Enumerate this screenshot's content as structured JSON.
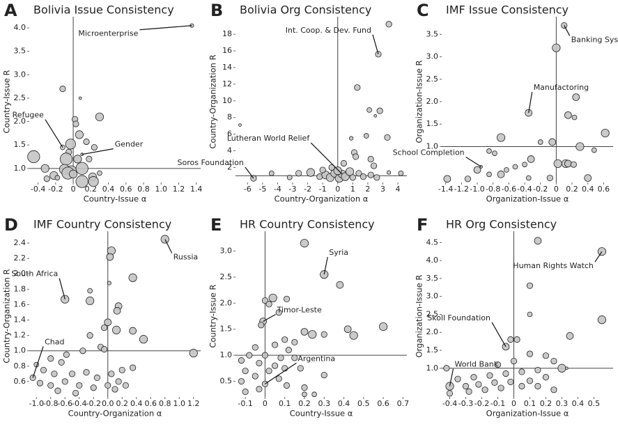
{
  "chart_data": [
    {
      "type": "scatter",
      "panel": "A",
      "title": "Bolivia Issue Consistency",
      "xlabel": "Country-Issue α",
      "ylabel": "Country-Issue R",
      "color": "#c4c4c4",
      "xlim": [
        -0.5,
        1.45
      ],
      "ylim": [
        0.7,
        4.15
      ],
      "xticks": [
        -0.4,
        -0.2,
        0,
        0.2,
        0.4,
        0.6,
        0.8,
        {
          "value": 1,
          "label": "1.0"
        },
        1.2,
        1.4
      ],
      "yticks": [
        {
          "value": 1,
          "label": "1.0"
        },
        1.5,
        {
          "value": 2,
          "label": "2.0"
        },
        2.5,
        {
          "value": 3,
          "label": "3.0"
        },
        3.5,
        {
          "value": 4,
          "label": "4.0"
        }
      ],
      "vline": 0,
      "hline": 1,
      "x": [
        1.35,
        -0.12,
        0.08,
        0.02,
        0.3,
        0.03,
        0.07,
        0.15,
        -0.03,
        0.24,
        -0.12,
        -0.05,
        0.1,
        0.05,
        0.18,
        -0.08,
        -0.45,
        -0.32,
        -0.1,
        -0.02,
        0.1,
        -0.06,
        0.0,
        -0.22,
        0.22,
        0.3,
        0.23,
        0.1,
        -0.18,
        -0.3
      ],
      "y": [
        4.05,
        2.7,
        2.5,
        2.05,
        2.1,
        1.95,
        1.72,
        1.57,
        1.52,
        1.45,
        1.45,
        1.35,
        1.3,
        1.2,
        1.2,
        1.2,
        1.25,
        1.0,
        0.98,
        0.95,
        1.0,
        0.9,
        0.88,
        0.85,
        0.82,
        0.9,
        0.72,
        0.72,
        0.8,
        0.78
      ],
      "sizes": [
        1,
        2,
        0.5,
        2,
        3,
        2,
        3,
        2,
        4,
        2,
        1.5,
        2,
        0.5,
        3,
        2,
        5,
        5,
        3,
        4,
        4,
        5,
        5,
        3,
        3,
        3,
        1.5,
        4,
        5,
        1.5,
        2
      ],
      "annotations": [
        {
          "text": "Microenterprise",
          "x": 1.35,
          "y": 4.05
        },
        {
          "text": "Refugee",
          "x": -0.12,
          "y": 1.45
        },
        {
          "text": "Gender",
          "x": 0.1,
          "y": 1.3
        }
      ]
    },
    {
      "type": "scatter",
      "panel": "B",
      "title": "Bolivia Org Consistency",
      "xlabel": "Country-Organization α",
      "ylabel": "Country-Organization R",
      "color": "#c4c4c4",
      "xlim": [
        -6.8,
        4.6
      ],
      "ylim": [
        0.2,
        19.6
      ],
      "xticks": [
        -6,
        -5,
        -4,
        -3,
        -2,
        -1,
        0,
        1,
        2,
        3,
        4
      ],
      "yticks": [
        2,
        4,
        6,
        8,
        10,
        12,
        14,
        16,
        18
      ],
      "vline": 0,
      "hline": 1,
      "x": [
        3.4,
        2.7,
        1.3,
        2.8,
        2.1,
        2.5,
        -6.5,
        3.3,
        1.9,
        0.9,
        1.1,
        1.2,
        2.2,
        2.4,
        -5.6,
        -4.4,
        -3.2,
        -2.6,
        -1.8,
        -1.2,
        -0.8,
        -0.5,
        -0.2,
        0.1,
        0.3,
        0.5,
        0.8,
        1.0,
        1.4,
        1.7,
        2.2,
        2.6,
        3.4,
        4.2,
        -0.4,
        0.4,
        0.0,
        -1.0
      ],
      "y": [
        19.2,
        15.6,
        11.6,
        8.8,
        8.9,
        8.2,
        7.1,
        5.6,
        5.8,
        5.5,
        3.8,
        3.3,
        3.0,
        2.2,
        0.7,
        1.3,
        0.8,
        1.3,
        1.4,
        0.9,
        1.1,
        0.8,
        1.3,
        0.7,
        1.2,
        0.9,
        1.5,
        0.8,
        1.3,
        0.9,
        1.1,
        0.8,
        1.4,
        1.3,
        2.0,
        2.5,
        1.6,
        1.7
      ],
      "sizes": [
        2,
        2,
        2,
        2,
        1.5,
        0.5,
        0.5,
        2,
        1.5,
        1,
        2,
        2,
        2,
        2,
        2,
        1.5,
        1.5,
        2,
        3,
        2,
        3,
        3,
        3,
        3,
        3,
        3,
        3,
        2,
        2,
        2,
        2,
        2,
        1,
        1.5,
        2,
        2,
        3,
        2
      ],
      "annotations": [
        {
          "text": "Int. Coop. & Dev. Fund",
          "x": 2.7,
          "y": 15.6
        },
        {
          "text": "Lutheran World Relief",
          "x": 0.3,
          "y": 1.2
        },
        {
          "text": "Soros Foundation",
          "x": -5.6,
          "y": 0.7
        }
      ]
    },
    {
      "type": "scatter",
      "panel": "C",
      "title": "IMF Issue Consistency",
      "xlabel": "Organization-Issue α",
      "ylabel": "Organization-Issue R",
      "color": "#c4c4c4",
      "xlim": [
        -1.45,
        0.72
      ],
      "ylim": [
        0.2,
        3.8
      ],
      "xticks": [
        -1.4,
        -1.2,
        {
          "value": -1,
          "label": "-1.0"
        },
        -0.8,
        -0.6,
        -0.4,
        -0.2,
        0,
        0.2,
        0.4,
        0.6
      ],
      "yticks": [
        {
          "value": 1,
          "label": "1.0"
        },
        1.5,
        {
          "value": 2,
          "label": "2.0"
        },
        2.5,
        {
          "value": 3,
          "label": "3.0"
        },
        3.5
      ],
      "vline": 0,
      "hline": 1,
      "x": [
        0.1,
        0.0,
        0.25,
        -0.35,
        0.15,
        0.23,
        0.62,
        -0.7,
        -0.2,
        -0.05,
        0.3,
        0.48,
        -0.85,
        -0.78,
        -0.32,
        -0.4,
        -0.52,
        -1.0,
        -0.63,
        -0.7,
        -0.85,
        -1.12,
        -1.38,
        -0.35,
        0.12,
        0.15,
        0.02,
        0.4,
        -0.08,
        0.22,
        -0.95
      ],
      "y": [
        3.7,
        3.2,
        2.1,
        1.75,
        1.7,
        1.65,
        1.3,
        1.2,
        1.1,
        1.1,
        1.0,
        0.92,
        0.9,
        0.85,
        0.72,
        0.6,
        0.55,
        0.48,
        0.48,
        0.38,
        0.38,
        0.28,
        0.28,
        0.3,
        0.62,
        0.62,
        0.62,
        0.3,
        0.3,
        0.6,
        0.55
      ],
      "sizes": [
        2,
        3,
        2.5,
        2.5,
        2.5,
        1.5,
        3,
        3,
        1.5,
        2.5,
        3,
        1.5,
        1.5,
        1.5,
        2.5,
        1.5,
        1.5,
        2.5,
        1.5,
        2.5,
        1.5,
        2,
        2.5,
        1.5,
        3,
        2.5,
        3,
        2.5,
        2,
        2,
        0.5
      ],
      "annotations": [
        {
          "text": "Banking System",
          "x": 0.1,
          "y": 3.7
        },
        {
          "text": "Manufactoring",
          "x": -0.35,
          "y": 1.75
        },
        {
          "text": "School Completion",
          "x": -0.95,
          "y": 0.55
        }
      ]
    },
    {
      "type": "scatter",
      "panel": "D",
      "title": "IMF Country Consistency",
      "xlabel": "Country-Organization α",
      "ylabel": "Country-Organization R",
      "color": "#c4c4c4",
      "xlim": [
        -1.1,
        1.3
      ],
      "ylim": [
        0.4,
        2.5
      ],
      "xticks": [
        {
          "value": -1,
          "label": "-1.0"
        },
        -0.8,
        -0.6,
        -0.4,
        -0.2,
        {
          "value": 0,
          "label": "0.0"
        },
        0.2,
        0.4,
        0.6,
        0.8,
        {
          "value": 1,
          "label": "1.0"
        },
        1.2
      ],
      "yticks": [
        0.6,
        0.8,
        {
          "value": 1,
          "label": "1.0"
        },
        1.2,
        1.4,
        1.6,
        1.8,
        {
          "value": 2,
          "label": "2.0"
        },
        2.2,
        2.4
      ],
      "vline": 0,
      "hline": 1,
      "x": [
        0.8,
        0.05,
        0.03,
        0.35,
        0.02,
        -0.25,
        -0.6,
        -0.25,
        0.15,
        0.13,
        0.0,
        -0.05,
        0.12,
        0.35,
        -0.25,
        0.5,
        1.2,
        -0.1,
        -0.05,
        -0.35,
        -0.58,
        -0.8,
        -0.65,
        -1.0,
        -0.9,
        -0.75,
        -0.5,
        -0.3,
        -0.15,
        0.05,
        0.2,
        0.35,
        -1.05,
        -0.95,
        -0.8,
        -0.6,
        -0.4,
        -0.2,
        0.0,
        0.15,
        -0.7,
        -0.45,
        0.1,
        0.25
      ],
      "y": [
        2.45,
        2.3,
        2.22,
        1.95,
        1.88,
        1.78,
        1.67,
        1.65,
        1.58,
        1.52,
        1.37,
        1.3,
        1.27,
        1.26,
        1.2,
        1.15,
        0.97,
        1.05,
        1.02,
        1.0,
        0.95,
        0.9,
        0.85,
        0.82,
        0.75,
        0.7,
        0.7,
        0.72,
        0.65,
        0.7,
        0.75,
        0.78,
        0.65,
        0.58,
        0.55,
        0.6,
        0.55,
        0.52,
        0.55,
        0.6,
        0.48,
        0.45,
        0.5,
        0.55
      ],
      "sizes": [
        3,
        3,
        2.5,
        3,
        1,
        1.5,
        3,
        3,
        2.5,
        2.5,
        2.5,
        2,
        3,
        2.5,
        2,
        3,
        3,
        2,
        2,
        2,
        2,
        2,
        2,
        1.5,
        2,
        2,
        2,
        2,
        2,
        2,
        2,
        2,
        2,
        2,
        2,
        2,
        2,
        2,
        2,
        2,
        2,
        2,
        2,
        2
      ],
      "annotations": [
        {
          "text": "Russia",
          "x": 0.8,
          "y": 2.45
        },
        {
          "text": "South Africa",
          "x": -0.6,
          "y": 1.67
        },
        {
          "text": "Chad",
          "x": -1.05,
          "y": 0.65
        }
      ]
    },
    {
      "type": "scatter",
      "panel": "E",
      "title": "HR Country Consistency",
      "xlabel": "Country-Issue α",
      "ylabel": "Country-Issue R",
      "color": "#c4c4c4",
      "xlim": [
        -0.15,
        0.72
      ],
      "ylim": [
        0.2,
        3.3
      ],
      "xticks": [
        -0.1,
        0,
        0.1,
        0.2,
        0.3,
        0.4,
        0.5,
        0.6,
        0.7
      ],
      "yticks": [
        0.5,
        {
          "value": 1,
          "label": "1.0"
        },
        1.5,
        {
          "value": 2,
          "label": "2.0"
        },
        2.5,
        {
          "value": 3,
          "label": "3.0"
        }
      ],
      "vline": 0,
      "hline": 1,
      "x": [
        0.2,
        0.3,
        0.38,
        0.04,
        0.0,
        0.02,
        0.11,
        0.07,
        -0.01,
        -0.02,
        0.6,
        0.42,
        0.2,
        0.24,
        0.3,
        0.45,
        0.1,
        0.15,
        0.05,
        -0.05,
        0.12,
        0.0,
        -0.08,
        0.08,
        0.15,
        -0.12,
        -0.03,
        0.05,
        0.1,
        0.02,
        -0.1,
        0.18,
        0.3,
        -0.05,
        0.07,
        -0.12,
        0.0,
        0.11,
        -0.03,
        0.2,
        0.2,
        0.25,
        -0.1
      ],
      "y": [
        3.15,
        2.55,
        2.35,
        2.1,
        2.05,
        1.98,
        2.08,
        1.82,
        1.65,
        1.58,
        1.55,
        1.5,
        1.45,
        1.4,
        1.4,
        1.38,
        1.3,
        1.25,
        1.2,
        1.15,
        1.1,
        1.0,
        1.0,
        0.95,
        0.95,
        0.9,
        0.85,
        0.8,
        0.75,
        0.7,
        0.7,
        0.75,
        0.62,
        0.6,
        0.55,
        0.5,
        0.45,
        0.42,
        0.35,
        0.38,
        0.25,
        0.25,
        0.3
      ],
      "sizes": [
        3,
        3,
        2.5,
        3,
        2,
        2,
        2,
        2,
        2.5,
        2,
        3,
        2.5,
        2.5,
        3,
        2,
        3,
        2,
        2,
        2,
        2,
        2,
        2,
        2,
        2,
        2,
        2,
        2,
        2,
        2,
        2,
        2,
        2,
        2,
        2,
        2,
        2,
        2,
        2,
        2,
        2,
        1.5,
        1.5,
        2
      ],
      "annotations": [
        {
          "text": "Syria",
          "x": 0.3,
          "y": 2.55
        },
        {
          "text": "Timor-Leste",
          "x": -0.01,
          "y": 1.65
        },
        {
          "text": "Argentina",
          "x": 0.0,
          "y": 0.45
        }
      ]
    },
    {
      "type": "scatter",
      "panel": "F",
      "title": "HR Org Consistency",
      "xlabel": "Organization-Issue α",
      "ylabel": "Organization-Issue R",
      "color": "#c4c4c4",
      "xlim": [
        -0.45,
        0.62
      ],
      "ylim": [
        0.2,
        4.7
      ],
      "xticks": [
        -0.4,
        -0.3,
        -0.2,
        -0.1,
        0,
        0.1,
        0.2,
        0.3,
        0.4,
        0.5
      ],
      "yticks": [
        {
          "value": 1,
          "label": "1.0"
        },
        1.5,
        {
          "value": 2,
          "label": "2.0"
        },
        2.5,
        {
          "value": 3,
          "label": "3.0"
        },
        3.5,
        {
          "value": 4,
          "label": "4.0"
        },
        4.5
      ],
      "vline": 0,
      "hline": 1,
      "x": [
        0.15,
        0.55,
        0.1,
        0.55,
        0.1,
        0.35,
        -0.05,
        -0.02,
        0.02,
        0.2,
        0.1,
        0.25,
        0.0,
        -0.1,
        0.3,
        0.15,
        0.05,
        -0.05,
        -0.15,
        -0.25,
        -0.35,
        0.2,
        0.1,
        -0.02,
        -0.12,
        -0.22,
        -0.3,
        0.05,
        0.15,
        -0.08,
        -0.18,
        -0.4,
        -0.42,
        -0.4,
        0.25,
        -0.28,
        0.33
      ],
      "y": [
        4.55,
        4.25,
        3.3,
        2.35,
        2.5,
        1.9,
        1.6,
        1.8,
        1.8,
        1.35,
        1.4,
        1.2,
        1.2,
        1.1,
        1.0,
        0.95,
        0.9,
        0.85,
        0.8,
        0.75,
        0.7,
        0.75,
        0.65,
        0.62,
        0.6,
        0.55,
        0.5,
        0.5,
        0.5,
        0.45,
        0.4,
        0.5,
        1.0,
        0.3,
        0.4,
        0.35,
        1.0
      ],
      "sizes": [
        2.5,
        3,
        2,
        3,
        1.5,
        2.5,
        2.5,
        2,
        2,
        2,
        2,
        2,
        2,
        2,
        3,
        2,
        2,
        2,
        2,
        2,
        2,
        2,
        2,
        2,
        2,
        2,
        2,
        2,
        2,
        2,
        2,
        3,
        2,
        2,
        2,
        2,
        0.5
      ],
      "annotations": [
        {
          "text": "Human Rights Watch",
          "x": 0.55,
          "y": 4.25
        },
        {
          "text": "Skoll Foundation",
          "x": -0.05,
          "y": 1.6
        },
        {
          "text": "World Bank",
          "x": -0.4,
          "y": 0.5
        }
      ]
    }
  ]
}
